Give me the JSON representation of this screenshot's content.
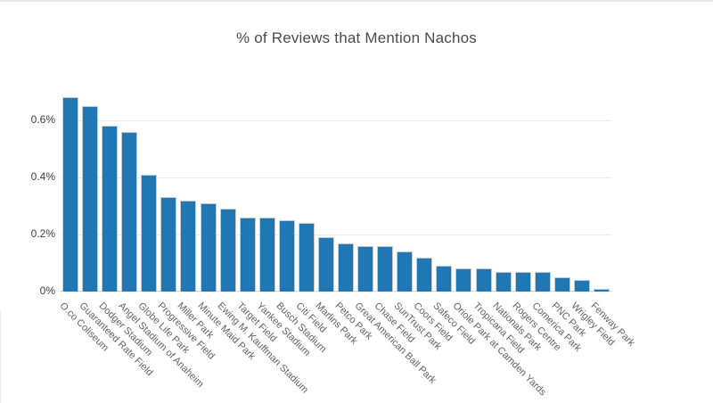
{
  "chart_data": {
    "type": "bar",
    "title": "% of Reviews that Mention Nachos",
    "xlabel": "",
    "ylabel": "",
    "unit": "%",
    "categories": [
      "O.co Coliseum",
      "Guaranteed Rate Field",
      "Dodger Stadium",
      "Angel Stadium of Anaheim",
      "Globe Life Park",
      "Progressive Field",
      "Miller Park",
      "Minute Maid Park",
      "Ewing M. Kauffman Stadium",
      "Target Field",
      "Yankee Stadium",
      "Busch Stadium",
      "Citi Field",
      "Marlins Park",
      "Petco Park",
      "Great American Ball Park",
      "Chase Field",
      "SunTrust Park",
      "Coors Field",
      "Safeco Field",
      "Oriole Park at Camden Yards",
      "Tropicana Field",
      "Nationals Park",
      "Rogers Centre",
      "Comerica Park",
      "PNC Park",
      "Wrigley Field",
      "Fenway Park"
    ],
    "values": [
      0.68,
      0.65,
      0.58,
      0.56,
      0.41,
      0.33,
      0.32,
      0.31,
      0.29,
      0.26,
      0.26,
      0.25,
      0.24,
      0.19,
      0.17,
      0.16,
      0.16,
      0.14,
      0.12,
      0.09,
      0.08,
      0.08,
      0.07,
      0.07,
      0.07,
      0.05,
      0.04,
      0.01
    ],
    "ylim": [
      0,
      0.7
    ],
    "yticks": [
      {
        "value": 0,
        "label": "0%"
      },
      {
        "value": 0.2,
        "label": "0.2%"
      },
      {
        "value": 0.4,
        "label": "0.4%"
      },
      {
        "value": 0.6,
        "label": "0.6%"
      }
    ],
    "grid": true,
    "legend": "none",
    "bar_color": "#2077b4",
    "xtick_rotation_deg": 45
  }
}
